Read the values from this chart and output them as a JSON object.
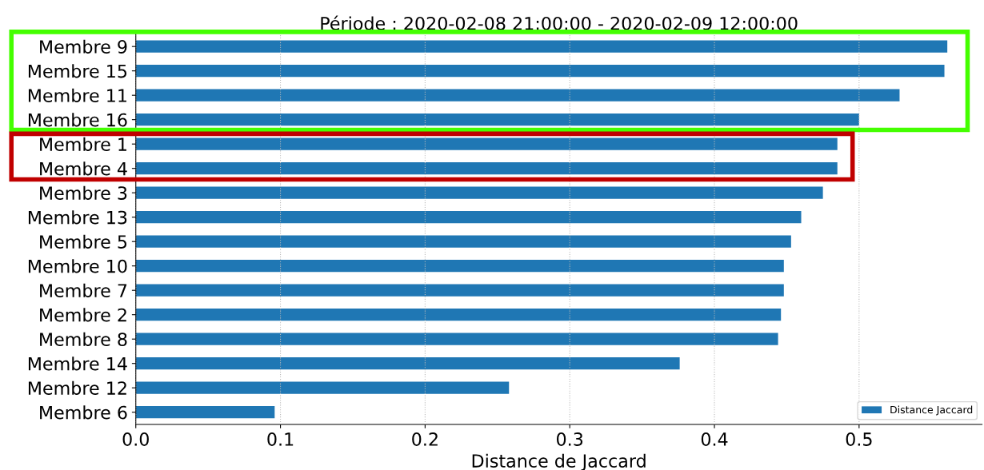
{
  "chart_data": {
    "type": "bar",
    "orientation": "horizontal",
    "title": "Période : 2020-02-08 21:00:00 - 2020-02-09 12:00:00",
    "xlabel": "Distance de Jaccard",
    "categories": [
      "Membre 9",
      "Membre 15",
      "Membre 11",
      "Membre 16",
      "Membre 1",
      "Membre 4",
      "Membre 3",
      "Membre 13",
      "Membre 5",
      "Membre 10",
      "Membre 7",
      "Membre 2",
      "Membre 8",
      "Membre 14",
      "Membre 12",
      "Membre 6"
    ],
    "series": [
      {
        "name": "Distance Jaccard",
        "color": "#1f77b4",
        "values": [
          0.561,
          0.559,
          0.528,
          0.5,
          0.485,
          0.485,
          0.475,
          0.46,
          0.453,
          0.448,
          0.448,
          0.446,
          0.444,
          0.376,
          0.258,
          0.096
        ]
      }
    ],
    "xlim": [
      0,
      0.585
    ],
    "xticks": [
      {
        "value": 0,
        "label": "0.0"
      },
      0.1,
      0.2,
      0.3,
      0.4,
      0.5
    ],
    "grid": "x",
    "legend": "bottom right"
  }
}
